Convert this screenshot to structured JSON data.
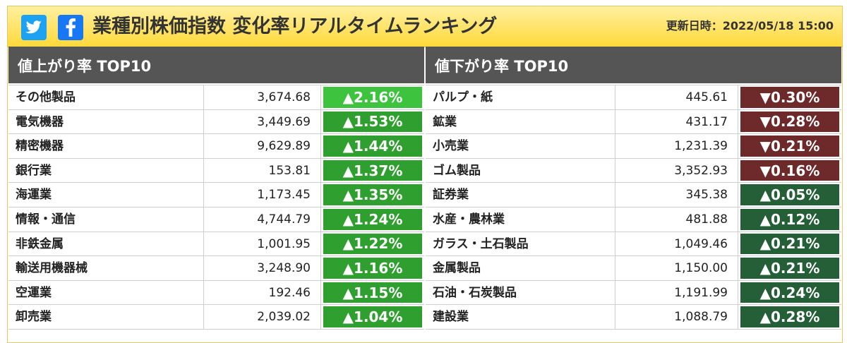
{
  "header": {
    "title": "業種別株価指数 変化率リアルタイムランキング",
    "updated_label": "更新日時：",
    "updated_value": "2022/05/18 15:00",
    "social": {
      "twitter_icon": "twitter-icon",
      "facebook_icon": "facebook-icon"
    },
    "colors": {
      "header_top": "#fff0a0",
      "header_bottom": "#ffd93a",
      "twitter": "#1da1f2",
      "facebook": "#1877f2"
    }
  },
  "gainers": {
    "title": "値上がり率 TOP10",
    "rows": [
      {
        "name": "その他製品",
        "value": "3,674.68",
        "change": "▲2.16%",
        "dir": "up"
      },
      {
        "name": "電気機器",
        "value": "3,449.69",
        "change": "▲1.53%",
        "dir": "up"
      },
      {
        "name": "精密機器",
        "value": "9,629.89",
        "change": "▲1.44%",
        "dir": "up"
      },
      {
        "name": "銀行業",
        "value": "153.81",
        "change": "▲1.37%",
        "dir": "up"
      },
      {
        "name": "海運業",
        "value": "1,173.45",
        "change": "▲1.35%",
        "dir": "up"
      },
      {
        "name": "情報・通信",
        "value": "4,744.79",
        "change": "▲1.24%",
        "dir": "up"
      },
      {
        "name": "非鉄金属",
        "value": "1,001.95",
        "change": "▲1.22%",
        "dir": "up"
      },
      {
        "name": "輸送用機器械",
        "value": "3,248.90",
        "change": "▲1.16%",
        "dir": "up"
      },
      {
        "name": "空運業",
        "value": "192.46",
        "change": "▲1.15%",
        "dir": "up"
      },
      {
        "name": "卸売業",
        "value": "2,039.02",
        "change": "▲1.04%",
        "dir": "up"
      }
    ]
  },
  "losers": {
    "title": "値下がり率 TOP10",
    "rows": [
      {
        "name": "パルプ・紙",
        "value": "445.61",
        "change": "▼0.30%",
        "dir": "down"
      },
      {
        "name": "鉱業",
        "value": "431.17",
        "change": "▼0.28%",
        "dir": "down"
      },
      {
        "name": "小売業",
        "value": "1,231.39",
        "change": "▼0.21%",
        "dir": "down"
      },
      {
        "name": "ゴム製品",
        "value": "3,352.93",
        "change": "▼0.16%",
        "dir": "down"
      },
      {
        "name": "証券業",
        "value": "345.38",
        "change": "▲0.05%",
        "dir": "up"
      },
      {
        "name": "水産・農林業",
        "value": "481.88",
        "change": "▲0.12%",
        "dir": "up"
      },
      {
        "name": "ガラス・土石製品",
        "value": "1,049.46",
        "change": "▲0.21%",
        "dir": "up"
      },
      {
        "name": "金属製品",
        "value": "1,150.00",
        "change": "▲0.21%",
        "dir": "up"
      },
      {
        "name": "石油・石炭製品",
        "value": "1,191.99",
        "change": "▲0.24%",
        "dir": "up"
      },
      {
        "name": "建設業",
        "value": "1,088.79",
        "change": "▲0.28%",
        "dir": "up"
      }
    ]
  }
}
